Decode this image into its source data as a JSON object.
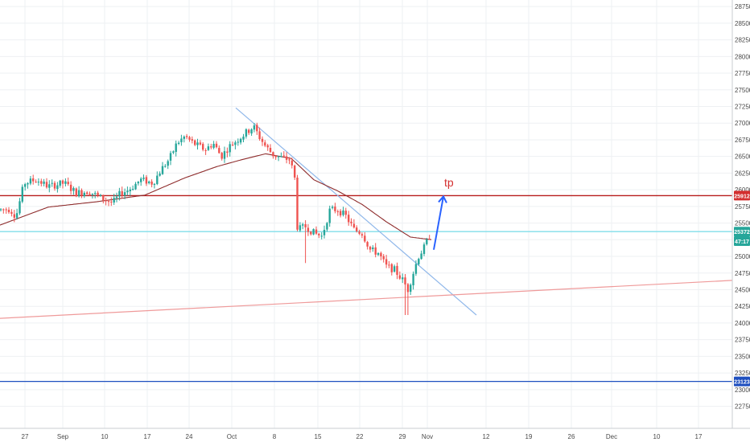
{
  "chart_data": {
    "type": "candlestick",
    "title": "",
    "xlabel": "",
    "ylabel": "",
    "ylim": [
      22600,
      28800
    ],
    "grid": true,
    "y_ticks": [
      22750,
      23000,
      23250,
      23500,
      23750,
      24000,
      24250,
      24500,
      24750,
      25000,
      25250,
      25500,
      25750,
      26000,
      26250,
      26500,
      26750,
      27000,
      27250,
      27500,
      27750,
      28000,
      28250,
      28500,
      28750
    ],
    "x_ticks": [
      "27",
      "Sep",
      "10",
      "17",
      "24",
      "Oct",
      "8",
      "15",
      "22",
      "29",
      "Nov",
      "12",
      "19",
      "26",
      "Dec",
      "10",
      "17"
    ],
    "price_badges": [
      {
        "label": "25912",
        "value": 25912,
        "color": "#d32f2f"
      },
      {
        "label": "25372",
        "value": 25372,
        "color": "#26a69a"
      },
      {
        "label": "47:17",
        "value": 25230,
        "color": "#26a69a"
      },
      {
        "label": "23123",
        "value": 23123,
        "color": "#1e4fbf"
      }
    ],
    "annotation": {
      "text": "tp",
      "color": "#d32f2f"
    },
    "horizontal_lines": [
      {
        "value": 25912,
        "color": "#b71c1c"
      },
      {
        "value": 25372,
        "color": "#80deea"
      },
      {
        "value": 23123,
        "color": "#1e4fbf"
      }
    ],
    "trendlines": [
      {
        "name": "descending",
        "color": "#90b8ea",
        "points": [
          [
            0,
            27230
          ],
          [
            1,
            24120
          ]
        ]
      },
      {
        "name": "ascending",
        "color": "#ef9a9a",
        "points": [
          [
            0,
            24070
          ],
          [
            1,
            24640
          ]
        ]
      }
    ],
    "arrow": {
      "color": "#2962ff",
      "from": 25100,
      "to": 25900
    },
    "colors": {
      "up": "#26a69a",
      "down": "#ef5350",
      "ma": "#8e2c2c"
    },
    "series": [
      {
        "kind": "candles",
        "anchors": [
          [
            0,
            25700
          ],
          [
            12,
            25710
          ],
          [
            20,
            25600
          ],
          [
            30,
            26100
          ],
          [
            45,
            26150
          ],
          [
            60,
            26050
          ],
          [
            80,
            26100
          ],
          [
            95,
            25950
          ],
          [
            110,
            25980
          ],
          [
            125,
            25880
          ],
          [
            140,
            25800
          ],
          [
            150,
            25950
          ],
          [
            160,
            26000
          ],
          [
            175,
            26150
          ],
          [
            190,
            26100
          ],
          [
            200,
            26300
          ],
          [
            210,
            26450
          ],
          [
            220,
            26700
          ],
          [
            230,
            26800
          ],
          [
            240,
            26700
          ],
          [
            255,
            26600
          ],
          [
            265,
            26700
          ],
          [
            275,
            26500
          ],
          [
            285,
            26650
          ],
          [
            300,
            26800
          ],
          [
            315,
            26950
          ],
          [
            322,
            26800
          ],
          [
            330,
            26650
          ],
          [
            340,
            26520
          ],
          [
            350,
            26480
          ],
          [
            360,
            26450
          ],
          [
            366,
            26200
          ],
          [
            370,
            25400
          ],
          [
            380,
            25450
          ],
          [
            390,
            25350
          ],
          [
            400,
            25300
          ],
          [
            410,
            25700
          ],
          [
            420,
            25700
          ],
          [
            430,
            25600
          ],
          [
            440,
            25400
          ],
          [
            450,
            25350
          ],
          [
            460,
            25100
          ],
          [
            470,
            25050
          ],
          [
            480,
            24850
          ],
          [
            490,
            24800
          ],
          [
            500,
            24650
          ],
          [
            507,
            24500
          ],
          [
            512,
            24700
          ],
          [
            520,
            25000
          ],
          [
            528,
            25150
          ],
          [
            537,
            25400
          ]
        ]
      },
      {
        "kind": "moving_average",
        "anchors": [
          [
            0,
            25470
          ],
          [
            60,
            25740
          ],
          [
            120,
            25820
          ],
          [
            180,
            25920
          ],
          [
            230,
            26180
          ],
          [
            270,
            26350
          ],
          [
            300,
            26450
          ],
          [
            330,
            26540
          ],
          [
            362,
            26470
          ],
          [
            390,
            26150
          ],
          [
            420,
            25980
          ],
          [
            450,
            25780
          ],
          [
            480,
            25520
          ],
          [
            510,
            25290
          ],
          [
            537,
            25250
          ]
        ]
      }
    ]
  }
}
